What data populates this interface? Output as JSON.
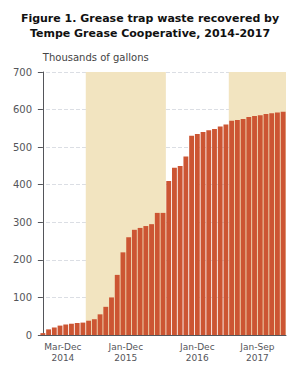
{
  "chart_data": {
    "type": "bar",
    "title": "Figure 1. Grease trap waste recovered by\nTempe Grease Cooperative, 2014-2017",
    "y_label": "Thousands of gallons",
    "color": "#cc5533",
    "shade_color": "#f2e4c0",
    "ylim": [
      0,
      700
    ],
    "yticks": [
      0,
      100,
      200,
      300,
      400,
      500,
      600,
      700
    ],
    "grid": true,
    "values": [
      5,
      15,
      20,
      25,
      28,
      30,
      32,
      33,
      38,
      42,
      55,
      75,
      100,
      160,
      220,
      260,
      280,
      285,
      290,
      295,
      325,
      325,
      410,
      445,
      450,
      475,
      530,
      535,
      540,
      545,
      548,
      555,
      560,
      570,
      572,
      575,
      580,
      583,
      585,
      588,
      590,
      592,
      594
    ],
    "groups": [
      {
        "label": "Mar-Dec\n2014",
        "size": 8,
        "shaded": false
      },
      {
        "label": "Jan-Dec\n2015",
        "size": 14,
        "shaded": true
      },
      {
        "label": "Jan-Dec\n2016",
        "size": 11,
        "shaded": false
      },
      {
        "label": "Jan-Sep\n2017",
        "size": 10,
        "shaded": true
      }
    ]
  }
}
